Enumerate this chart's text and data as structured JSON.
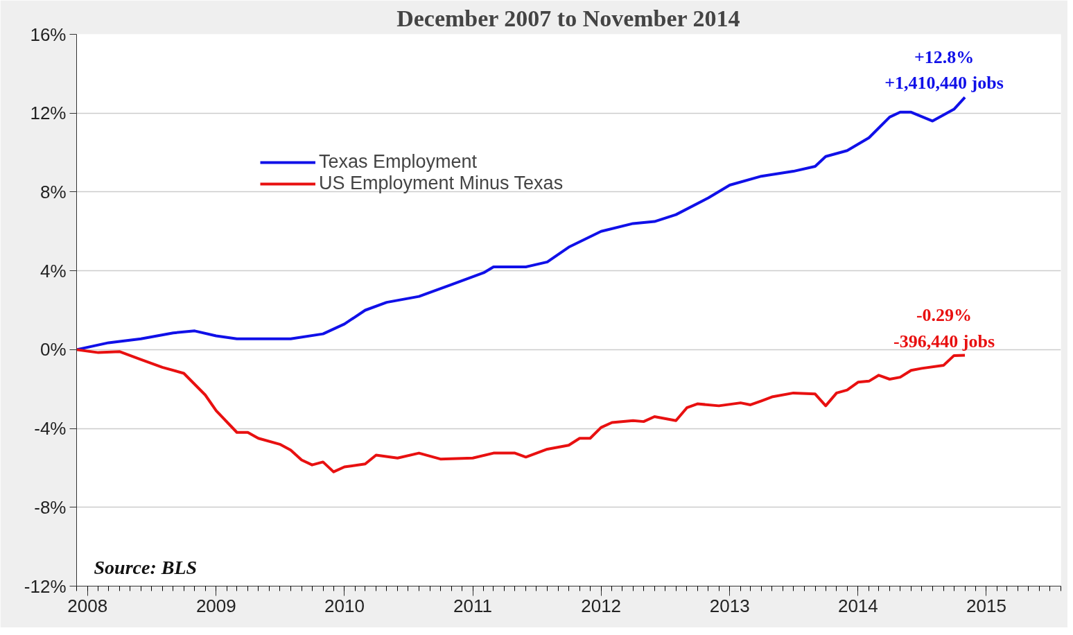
{
  "chart_data": {
    "type": "line",
    "title": "December 2007 to November 2014",
    "xlim": [
      "2007-12",
      "2015-08"
    ],
    "xticks": [
      "2008",
      "2009",
      "2010",
      "2011",
      "2012",
      "2013",
      "2014",
      "2015"
    ],
    "ylim": [
      -12,
      16
    ],
    "yticks": [
      {
        "value": -12,
        "label": "-12%"
      },
      {
        "value": -8,
        "label": "-8%"
      },
      {
        "value": -4,
        "label": "-4%"
      },
      {
        "value": 0,
        "label": "0%"
      },
      {
        "value": 4,
        "label": "4%"
      },
      {
        "value": 8,
        "label": "8%"
      },
      {
        "value": 12,
        "label": "12%"
      },
      {
        "value": 16,
        "label": "16%"
      }
    ],
    "grid": "y",
    "legend": "top left",
    "marker": "none",
    "line_style": "solid",
    "series": [
      {
        "name": "Texas Employment",
        "color": "#1010e8",
        "x": [
          "2007-12",
          "2008-03",
          "2008-06",
          "2008-09",
          "2008-11",
          "2009-01",
          "2009-03",
          "2009-06",
          "2009-08",
          "2009-11",
          "2010-01",
          "2010-03",
          "2010-05",
          "2010-08",
          "2010-09",
          "2010-11",
          "2011-02",
          "2011-03",
          "2011-06",
          "2011-08",
          "2011-10",
          "2012-01",
          "2012-04",
          "2012-06",
          "2012-08",
          "2012-11",
          "2013-01",
          "2013-04",
          "2013-07",
          "2013-09",
          "2013-10",
          "2013-12",
          "2014-02",
          "2014-04",
          "2014-05",
          "2014-06",
          "2014-08",
          "2014-10",
          "2014-11"
        ],
        "values": [
          0,
          0.35,
          0.55,
          0.85,
          0.95,
          0.7,
          0.55,
          0.55,
          0.55,
          0.8,
          1.3,
          2.0,
          2.4,
          2.7,
          2.9,
          3.3,
          3.9,
          4.2,
          4.2,
          4.45,
          5.2,
          6.0,
          6.4,
          6.5,
          6.85,
          7.7,
          8.35,
          8.8,
          9.05,
          9.3,
          9.8,
          10.1,
          10.75,
          11.8,
          12.05,
          12.05,
          11.6,
          12.2,
          12.8
        ]
      },
      {
        "name": "US Employment Minus Texas",
        "color": "#e81010",
        "x": [
          "2007-12",
          "2008-02",
          "2008-04",
          "2008-06",
          "2008-08",
          "2008-10",
          "2008-12",
          "2009-01",
          "2009-03",
          "2009-04",
          "2009-05",
          "2009-07",
          "2009-08",
          "2009-09",
          "2009-10",
          "2009-11",
          "2009-12",
          "2010-01",
          "2010-03",
          "2010-04",
          "2010-06",
          "2010-08",
          "2010-10",
          "2011-01",
          "2011-03",
          "2011-05",
          "2011-06",
          "2011-08",
          "2011-10",
          "2011-11",
          "2011-12",
          "2012-01",
          "2012-02",
          "2012-04",
          "2012-05",
          "2012-06",
          "2012-08",
          "2012-09",
          "2012-10",
          "2012-12",
          "2013-02",
          "2013-03",
          "2013-04",
          "2013-05",
          "2013-07",
          "2013-09",
          "2013-10",
          "2013-11",
          "2013-12",
          "2014-01",
          "2014-02",
          "2014-03",
          "2014-04",
          "2014-05",
          "2014-06",
          "2014-07",
          "2014-09",
          "2014-10",
          "2014-11"
        ],
        "values": [
          0,
          -0.15,
          -0.1,
          -0.5,
          -0.9,
          -1.2,
          -2.3,
          -3.1,
          -4.2,
          -4.2,
          -4.5,
          -4.8,
          -5.1,
          -5.6,
          -5.85,
          -5.7,
          -6.2,
          -5.95,
          -5.8,
          -5.35,
          -5.5,
          -5.25,
          -5.55,
          -5.5,
          -5.25,
          -5.25,
          -5.45,
          -5.05,
          -4.85,
          -4.5,
          -4.5,
          -3.95,
          -3.7,
          -3.6,
          -3.65,
          -3.4,
          -3.6,
          -2.95,
          -2.75,
          -2.85,
          -2.7,
          -2.8,
          -2.6,
          -2.4,
          -2.2,
          -2.25,
          -2.85,
          -2.2,
          -2.05,
          -1.65,
          -1.6,
          -1.3,
          -1.5,
          -1.4,
          -1.05,
          -0.95,
          -0.8,
          -0.3,
          -0.29
        ]
      }
    ],
    "annotations": [
      {
        "text": "+12.8%\n+1,410,440 jobs",
        "x": "2014-11",
        "y": 12.8
      },
      {
        "text": "-0.29%\n-396,440 jobs",
        "x": "2014-11",
        "y": -0.29
      },
      "Source: BLS"
    ]
  }
}
